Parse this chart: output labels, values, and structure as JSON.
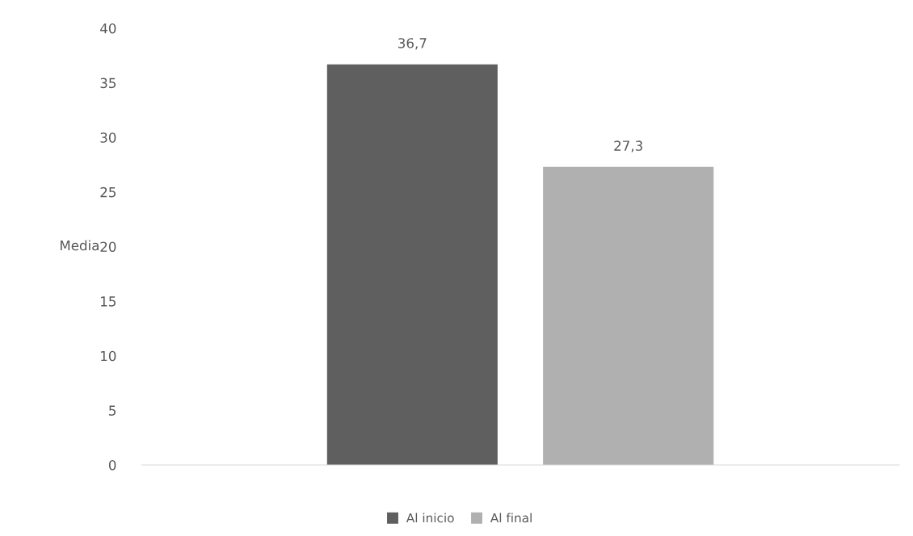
{
  "chart_data": {
    "type": "bar",
    "ylabel": "Media",
    "categories": [
      null
    ],
    "series": [
      {
        "name": "Al inicio",
        "color": "#5f5f5f",
        "values": [
          36.7
        ],
        "value_labels": [
          "36,7"
        ]
      },
      {
        "name": "Al final",
        "color": "#b0b0b0",
        "values": [
          27.3
        ],
        "value_labels": [
          "27,3"
        ]
      }
    ],
    "ylim": [
      0,
      40
    ],
    "yticks": [
      0,
      5,
      10,
      15,
      20,
      25,
      30,
      35,
      40
    ],
    "grid": false,
    "legend": "bottom"
  }
}
